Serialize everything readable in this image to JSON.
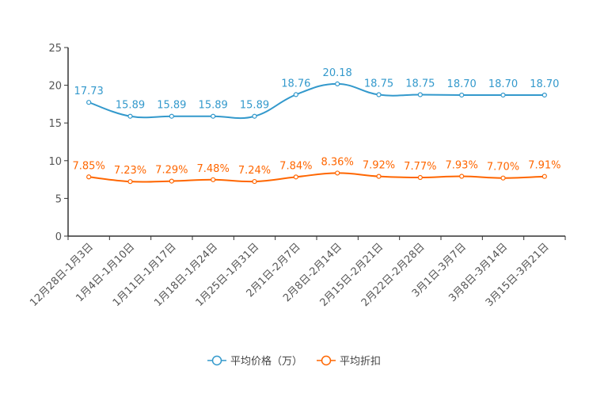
{
  "chart_data": {
    "type": "line",
    "title": "",
    "xlabel": "",
    "ylabel": "",
    "ylim": [
      0,
      25
    ],
    "yticks": [
      0,
      5,
      10,
      15,
      20,
      25
    ],
    "grid": false,
    "legend_position": "bottom",
    "categories": [
      "12月28日-1月3日",
      "1月4日-1月10日",
      "1月11日-1月17日",
      "1月18日-1月24日",
      "1月25日-1月31日",
      "2月1日-2月7日",
      "2月8日-2月14日",
      "2月15日-2月21日",
      "2月22日-2月28日",
      "3月1日-3月7日",
      "3月8日-3月14日",
      "3月15日-3月21日"
    ],
    "series": [
      {
        "name": "平均价格（万）",
        "color": "#3399cc",
        "values": [
          17.73,
          15.89,
          15.89,
          15.89,
          15.89,
          18.76,
          20.18,
          18.75,
          18.75,
          18.7,
          18.7,
          18.7
        ],
        "labels": [
          "17.73",
          "15.89",
          "15.89",
          "15.89",
          "15.89",
          "18.76",
          "20.18",
          "18.75",
          "18.75",
          "18.70",
          "18.70",
          "18.70"
        ]
      },
      {
        "name": "平均折扣",
        "color": "#ff6600",
        "values": [
          7.85,
          7.23,
          7.29,
          7.48,
          7.24,
          7.84,
          8.36,
          7.92,
          7.77,
          7.93,
          7.7,
          7.91
        ],
        "labels": [
          "7.85%",
          "7.23%",
          "7.29%",
          "7.48%",
          "7.24%",
          "7.84%",
          "8.36%",
          "7.92%",
          "7.77%",
          "7.93%",
          "7.70%",
          "7.91%"
        ]
      }
    ]
  }
}
